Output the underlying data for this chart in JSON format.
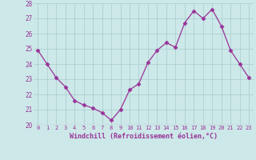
{
  "x": [
    0,
    1,
    2,
    3,
    4,
    5,
    6,
    7,
    8,
    9,
    10,
    11,
    12,
    13,
    14,
    15,
    16,
    17,
    18,
    19,
    20,
    21,
    22,
    23
  ],
  "y": [
    24.9,
    24.0,
    23.1,
    22.5,
    21.6,
    21.3,
    21.1,
    20.8,
    20.3,
    21.0,
    22.3,
    22.7,
    24.1,
    24.9,
    25.4,
    25.1,
    26.7,
    27.5,
    27.0,
    27.6,
    26.5,
    24.9,
    24.0,
    23.1
  ],
  "line_color": "#993399",
  "marker": "D",
  "marker_size": 2.5,
  "bg_color": "#cce8e8",
  "plot_bg_color": "#cce8e8",
  "grid_color": "#aacccc",
  "xlabel": "Windchill (Refroidissement éolien,°C)",
  "xlabel_color": "#993399",
  "tick_color": "#993399",
  "ylim": [
    20,
    28
  ],
  "yticks": [
    20,
    21,
    22,
    23,
    24,
    25,
    26,
    27,
    28
  ],
  "xticks": [
    0,
    1,
    2,
    3,
    4,
    5,
    6,
    7,
    8,
    9,
    10,
    11,
    12,
    13,
    14,
    15,
    16,
    17,
    18,
    19,
    20,
    21,
    22,
    23
  ]
}
